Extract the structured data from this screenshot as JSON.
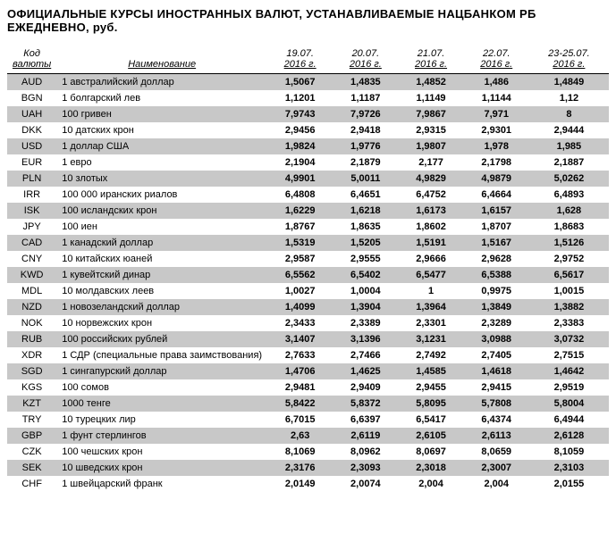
{
  "title": "ОФИЦИАЛЬНЫЕ КУРСЫ ИНОСТРАННЫХ ВАЛЮТ, УСТАНАВЛИВАЕМЫЕ НАЦБАНКОМ РБ ЕЖЕДНЕВНО, руб.",
  "headers": {
    "code_line1": "Код",
    "code_line2": "валюты",
    "name": "Наименование",
    "d1_line1": "19.07.",
    "d1_line2": "2016 г.",
    "d2_line1": "20.07.",
    "d2_line2": "2016 г.",
    "d3_line1": "21.07.",
    "d3_line2": "2016 г.",
    "d4_line1": "22.07.",
    "d4_line2": "2016 г.",
    "d5_line1": "23-25.07.",
    "d5_line2": "2016 г."
  },
  "rows": [
    {
      "code": "AUD",
      "name": "1 австралийский доллар",
      "v1": "1,5067",
      "v2": "1,4835",
      "v3": "1,4852",
      "v4": "1,486",
      "v5": "1,4849"
    },
    {
      "code": "BGN",
      "name": "1 болгарский лев",
      "v1": "1,1201",
      "v2": "1,1187",
      "v3": "1,1149",
      "v4": "1,1144",
      "v5": "1,12"
    },
    {
      "code": "UAH",
      "name": "100 гривен",
      "v1": "7,9743",
      "v2": "7,9726",
      "v3": "7,9867",
      "v4": "7,971",
      "v5": "8"
    },
    {
      "code": "DKK",
      "name": "10 датских крон",
      "v1": "2,9456",
      "v2": "2,9418",
      "v3": "2,9315",
      "v4": "2,9301",
      "v5": "2,9444"
    },
    {
      "code": "USD",
      "name": "1 доллар США",
      "v1": "1,9824",
      "v2": "1,9776",
      "v3": "1,9807",
      "v4": "1,978",
      "v5": "1,985"
    },
    {
      "code": "EUR",
      "name": "1 евро",
      "v1": "2,1904",
      "v2": "2,1879",
      "v3": "2,177",
      "v4": "2,1798",
      "v5": "2,1887"
    },
    {
      "code": "PLN",
      "name": "10 злотых",
      "v1": "4,9901",
      "v2": "5,0011",
      "v3": "4,9829",
      "v4": "4,9879",
      "v5": "5,0262"
    },
    {
      "code": "IRR",
      "name": "100 000 иранских риалов",
      "v1": "6,4808",
      "v2": "6,4651",
      "v3": "6,4752",
      "v4": "6,4664",
      "v5": "6,4893"
    },
    {
      "code": "ISK",
      "name": "100 исландских крон",
      "v1": "1,6229",
      "v2": "1,6218",
      "v3": "1,6173",
      "v4": "1,6157",
      "v5": "1,628"
    },
    {
      "code": "JPY",
      "name": "100 иен",
      "v1": "1,8767",
      "v2": "1,8635",
      "v3": "1,8602",
      "v4": "1,8707",
      "v5": "1,8683"
    },
    {
      "code": "CAD",
      "name": "1 канадский доллар",
      "v1": "1,5319",
      "v2": "1,5205",
      "v3": "1,5191",
      "v4": "1,5167",
      "v5": "1,5126"
    },
    {
      "code": "CNY",
      "name": "10 китайских юаней",
      "v1": "2,9587",
      "v2": "2,9555",
      "v3": "2,9666",
      "v4": "2,9628",
      "v5": "2,9752"
    },
    {
      "code": "KWD",
      "name": "1 кувейтский динар",
      "v1": "6,5562",
      "v2": "6,5402",
      "v3": "6,5477",
      "v4": "6,5388",
      "v5": "6,5617"
    },
    {
      "code": "MDL",
      "name": "10 молдавских леев",
      "v1": "1,0027",
      "v2": "1,0004",
      "v3": "1",
      "v4": "0,9975",
      "v5": "1,0015"
    },
    {
      "code": "NZD",
      "name": "1 новозеландский доллар",
      "v1": "1,4099",
      "v2": "1,3904",
      "v3": "1,3964",
      "v4": "1,3849",
      "v5": "1,3882"
    },
    {
      "code": "NOK",
      "name": "10 норвежских крон",
      "v1": "2,3433",
      "v2": "2,3389",
      "v3": "2,3301",
      "v4": "2,3289",
      "v5": "2,3383"
    },
    {
      "code": "RUB",
      "name": "100 российских рублей",
      "v1": "3,1407",
      "v2": "3,1396",
      "v3": "3,1231",
      "v4": "3,0988",
      "v5": "3,0732"
    },
    {
      "code": "XDR",
      "name": "1 СДР (специальные права заимствования)",
      "v1": "2,7633",
      "v2": "2,7466",
      "v3": "2,7492",
      "v4": "2,7405",
      "v5": "2,7515"
    },
    {
      "code": "SGD",
      "name": "1 сингапурский доллар",
      "v1": "1,4706",
      "v2": "1,4625",
      "v3": "1,4585",
      "v4": "1,4618",
      "v5": "1,4642"
    },
    {
      "code": "KGS",
      "name": "100 сомов",
      "v1": "2,9481",
      "v2": "2,9409",
      "v3": "2,9455",
      "v4": "2,9415",
      "v5": "2,9519"
    },
    {
      "code": "KZT",
      "name": "1000 тенге",
      "v1": "5,8422",
      "v2": "5,8372",
      "v3": "5,8095",
      "v4": "5,7808",
      "v5": "5,8004"
    },
    {
      "code": "TRY",
      "name": "10 турецких лир",
      "v1": "6,7015",
      "v2": "6,6397",
      "v3": "6,5417",
      "v4": "6,4374",
      "v5": "6,4944"
    },
    {
      "code": "GBP",
      "name": "1 фунт стерлингов",
      "v1": "2,63",
      "v2": "2,6119",
      "v3": "2,6105",
      "v4": "2,6113",
      "v5": "2,6128"
    },
    {
      "code": "CZK",
      "name": "100 чешских крон",
      "v1": "8,1069",
      "v2": "8,0962",
      "v3": "8,0697",
      "v4": "8,0659",
      "v5": "8,1059"
    },
    {
      "code": "SEK",
      "name": "10 шведских крон",
      "v1": "2,3176",
      "v2": "2,3093",
      "v3": "2,3018",
      "v4": "2,3007",
      "v5": "2,3103"
    },
    {
      "code": "CHF",
      "name": "1 швейцарский франк",
      "v1": "2,0149",
      "v2": "2,0074",
      "v3": "2,004",
      "v4": "2,004",
      "v5": "2,0155"
    }
  ]
}
